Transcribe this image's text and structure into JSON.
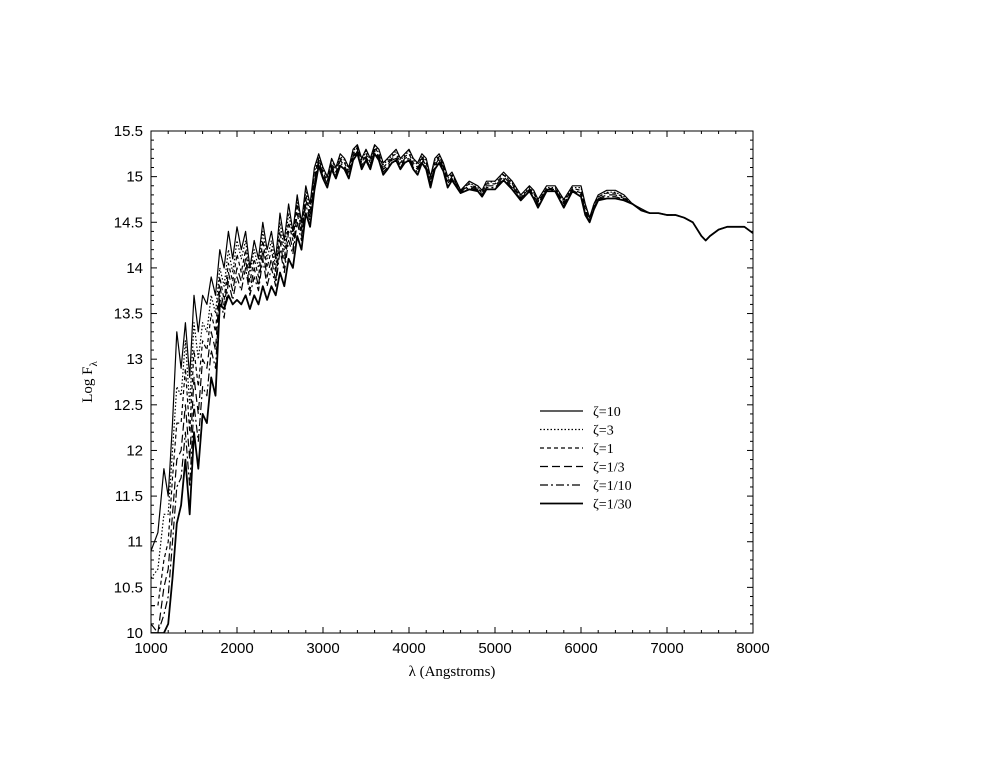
{
  "chart_data": {
    "type": "line",
    "title": "",
    "xlabel": "λ (Angstroms)",
    "ylabel_main": "Log F",
    "ylabel_sub": "λ",
    "xlim": [
      1000,
      8000
    ],
    "ylim": [
      10,
      15.5
    ],
    "xticks": [
      "1000",
      "2000",
      "3000",
      "4000",
      "5000",
      "6000",
      "7000",
      "8000"
    ],
    "yticks": [
      "10",
      "10.5",
      "11",
      "11.5",
      "12",
      "12.5",
      "13",
      "13.5",
      "14",
      "14.5",
      "15",
      "15.5"
    ],
    "grid": false,
    "legend_position": "center-right",
    "colors": {
      "line": "#000000",
      "frame": "#000000",
      "background": "#ffffff"
    },
    "x": [
      1000,
      1080,
      1150,
      1200,
      1250,
      1300,
      1350,
      1400,
      1450,
      1500,
      1550,
      1600,
      1650,
      1700,
      1750,
      1800,
      1850,
      1900,
      1950,
      2000,
      2050,
      2100,
      2150,
      2200,
      2250,
      2300,
      2350,
      2400,
      2450,
      2500,
      2550,
      2600,
      2650,
      2700,
      2750,
      2800,
      2850,
      2900,
      2950,
      3000,
      3050,
      3100,
      3150,
      3200,
      3250,
      3300,
      3350,
      3400,
      3450,
      3500,
      3550,
      3600,
      3650,
      3700,
      3750,
      3800,
      3850,
      3900,
      3950,
      4000,
      4050,
      4100,
      4150,
      4200,
      4250,
      4300,
      4350,
      4400,
      4450,
      4500,
      4600,
      4700,
      4800,
      4850,
      4900,
      5000,
      5100,
      5200,
      5300,
      5400,
      5450,
      5500,
      5600,
      5700,
      5800,
      5900,
      6000,
      6050,
      6100,
      6150,
      6200,
      6300,
      6400,
      6500,
      6600,
      6700,
      6800,
      6900,
      7000,
      7100,
      7200,
      7300,
      7400,
      7450,
      7500,
      7600,
      7700,
      7800,
      7900,
      8000
    ],
    "series": [
      {
        "name": "ζ=10",
        "dash": "solid",
        "values": [
          10.9,
          11.1,
          11.8,
          11.5,
          12.3,
          13.3,
          12.9,
          13.4,
          12.8,
          13.7,
          13.3,
          13.7,
          13.6,
          13.9,
          13.7,
          14.2,
          14.0,
          14.4,
          14.1,
          14.45,
          14.2,
          14.4,
          14.0,
          14.3,
          14.1,
          14.5,
          14.2,
          14.4,
          14.1,
          14.6,
          14.3,
          14.7,
          14.4,
          14.8,
          14.5,
          14.9,
          14.7,
          15.1,
          15.25,
          15.1,
          15.0,
          15.2,
          15.1,
          15.25,
          15.2,
          15.1,
          15.3,
          15.35,
          15.2,
          15.3,
          15.2,
          15.35,
          15.3,
          15.15,
          15.2,
          15.25,
          15.3,
          15.2,
          15.25,
          15.3,
          15.2,
          15.15,
          15.25,
          15.2,
          15.0,
          15.2,
          15.25,
          15.15,
          15.0,
          15.05,
          14.85,
          14.95,
          14.9,
          14.85,
          14.95,
          14.95,
          15.05,
          14.95,
          14.8,
          14.9,
          14.85,
          14.75,
          14.9,
          14.9,
          14.75,
          14.9,
          14.9,
          14.7,
          14.55,
          14.7,
          14.8,
          14.85,
          14.85,
          14.8,
          14.7,
          14.65,
          14.6,
          14.6,
          14.58,
          14.58,
          14.55,
          14.5,
          14.35,
          14.3,
          14.35,
          14.42,
          14.45,
          14.45,
          14.45,
          14.38
        ]
      },
      {
        "name": "ζ=3",
        "dash": "dotted",
        "values": [
          10.6,
          10.7,
          11.3,
          11.3,
          12.0,
          12.7,
          12.6,
          13.2,
          12.5,
          13.4,
          13.0,
          13.4,
          13.3,
          13.7,
          13.5,
          14.0,
          13.8,
          14.2,
          13.95,
          14.3,
          14.1,
          14.3,
          13.95,
          14.2,
          14.0,
          14.4,
          14.1,
          14.3,
          14.0,
          14.5,
          14.2,
          14.6,
          14.35,
          14.75,
          14.45,
          14.85,
          14.65,
          15.05,
          15.22,
          15.08,
          14.98,
          15.18,
          15.08,
          15.22,
          15.18,
          15.08,
          15.28,
          15.33,
          15.18,
          15.28,
          15.18,
          15.33,
          15.28,
          15.13,
          15.18,
          15.23,
          15.28,
          15.18,
          15.23,
          15.28,
          15.18,
          15.13,
          15.23,
          15.18,
          14.98,
          15.18,
          15.23,
          15.13,
          14.98,
          15.03,
          14.85,
          14.93,
          14.88,
          14.83,
          14.93,
          14.95,
          15.03,
          14.93,
          14.78,
          14.88,
          14.83,
          14.73,
          14.88,
          14.88,
          14.73,
          14.88,
          14.88,
          14.68,
          14.53,
          14.7,
          14.78,
          14.83,
          14.83,
          14.78,
          14.7,
          14.63,
          14.6,
          14.6,
          14.58,
          14.58,
          14.55,
          14.5,
          14.35,
          14.3,
          14.35,
          14.42,
          14.45,
          14.45,
          14.45,
          14.38
        ]
      },
      {
        "name": "ζ=1",
        "dash": "dashed-short",
        "values": [
          10.3,
          10.3,
          10.8,
          11.0,
          11.7,
          12.3,
          12.3,
          12.9,
          12.2,
          13.1,
          12.7,
          13.2,
          13.1,
          13.5,
          13.3,
          13.9,
          13.65,
          14.05,
          13.85,
          14.15,
          13.95,
          14.2,
          13.85,
          14.1,
          13.9,
          14.3,
          14.0,
          14.2,
          13.95,
          14.4,
          14.1,
          14.5,
          14.3,
          14.7,
          14.4,
          14.8,
          14.6,
          15.0,
          15.2,
          15.05,
          14.95,
          15.15,
          15.05,
          15.2,
          15.15,
          15.05,
          15.25,
          15.32,
          15.15,
          15.25,
          15.15,
          15.32,
          15.25,
          15.1,
          15.15,
          15.22,
          15.25,
          15.15,
          15.22,
          15.25,
          15.15,
          15.1,
          15.22,
          15.15,
          14.95,
          15.15,
          15.22,
          15.12,
          14.95,
          15.02,
          14.85,
          14.92,
          14.87,
          14.82,
          14.92,
          14.92,
          15.02,
          14.92,
          14.77,
          14.87,
          14.82,
          14.72,
          14.87,
          14.87,
          14.72,
          14.87,
          14.85,
          14.65,
          14.52,
          14.68,
          14.78,
          14.82,
          14.82,
          14.77,
          14.7,
          14.63,
          14.6,
          14.6,
          14.58,
          14.58,
          14.55,
          14.5,
          14.35,
          14.3,
          14.35,
          14.42,
          14.45,
          14.45,
          14.45,
          14.38
        ]
      },
      {
        "name": "ζ=1/3",
        "dash": "dashed-long",
        "values": [
          10.1,
          10.0,
          10.5,
          10.7,
          11.3,
          11.9,
          12.0,
          12.5,
          11.9,
          12.8,
          12.4,
          13.0,
          12.9,
          13.3,
          13.1,
          13.8,
          13.55,
          13.95,
          13.75,
          14.0,
          13.85,
          14.1,
          13.75,
          14.0,
          13.8,
          14.2,
          13.9,
          14.1,
          13.85,
          14.3,
          14.0,
          14.4,
          14.2,
          14.6,
          14.35,
          14.75,
          14.55,
          14.95,
          15.18,
          15.02,
          14.92,
          15.12,
          15.02,
          15.18,
          15.12,
          15.02,
          15.22,
          15.3,
          15.12,
          15.22,
          15.12,
          15.3,
          15.22,
          15.08,
          15.12,
          15.2,
          15.22,
          15.12,
          15.2,
          15.22,
          15.12,
          15.08,
          15.2,
          15.12,
          14.92,
          15.12,
          15.2,
          15.1,
          14.92,
          15.0,
          14.84,
          14.9,
          14.86,
          14.8,
          14.9,
          14.9,
          15.0,
          14.9,
          14.76,
          14.86,
          14.8,
          14.7,
          14.86,
          14.86,
          14.7,
          14.86,
          14.82,
          14.62,
          14.5,
          14.66,
          14.76,
          14.8,
          14.8,
          14.76,
          14.7,
          14.63,
          14.6,
          14.6,
          14.58,
          14.58,
          14.55,
          14.5,
          14.35,
          14.3,
          14.35,
          14.42,
          14.45,
          14.45,
          14.45,
          14.38
        ]
      },
      {
        "name": "ζ=1/10",
        "dash": "dash-dot",
        "values": [
          10.0,
          10.0,
          10.2,
          10.4,
          11.0,
          11.6,
          11.7,
          12.2,
          11.6,
          12.5,
          12.1,
          12.7,
          12.6,
          13.1,
          12.9,
          13.7,
          13.45,
          13.85,
          13.65,
          13.9,
          13.75,
          14.0,
          13.7,
          13.9,
          13.75,
          14.1,
          13.8,
          14.0,
          13.8,
          14.2,
          13.95,
          14.3,
          14.15,
          14.5,
          14.3,
          14.7,
          14.5,
          14.9,
          15.15,
          15.0,
          14.9,
          15.1,
          15.0,
          15.15,
          15.1,
          15.0,
          15.2,
          15.28,
          15.1,
          15.2,
          15.1,
          15.28,
          15.2,
          15.05,
          15.1,
          15.18,
          15.2,
          15.1,
          15.18,
          15.2,
          15.1,
          15.05,
          15.18,
          15.1,
          14.9,
          15.1,
          15.18,
          15.08,
          14.9,
          14.98,
          14.83,
          14.88,
          14.85,
          14.8,
          14.88,
          14.88,
          14.98,
          14.88,
          14.75,
          14.85,
          14.78,
          14.68,
          14.85,
          14.85,
          14.68,
          14.85,
          14.8,
          14.6,
          14.5,
          14.65,
          14.75,
          14.78,
          14.78,
          14.75,
          14.7,
          14.63,
          14.6,
          14.6,
          14.58,
          14.58,
          14.55,
          14.5,
          14.35,
          14.3,
          14.35,
          14.42,
          14.45,
          14.45,
          14.45,
          14.38
        ]
      },
      {
        "name": "ζ=1/30",
        "dash": "solid",
        "values": [
          10.0,
          10.0,
          10.0,
          10.1,
          10.6,
          11.2,
          11.4,
          11.9,
          11.3,
          12.2,
          11.8,
          12.4,
          12.3,
          12.8,
          12.6,
          13.6,
          13.55,
          13.7,
          13.6,
          13.65,
          13.6,
          13.7,
          13.55,
          13.7,
          13.6,
          13.8,
          13.65,
          13.8,
          13.7,
          13.95,
          13.8,
          14.1,
          14.0,
          14.35,
          14.2,
          14.6,
          14.45,
          14.85,
          15.12,
          14.98,
          14.88,
          15.08,
          14.98,
          15.12,
          15.08,
          14.98,
          15.18,
          15.25,
          15.08,
          15.18,
          15.08,
          15.25,
          15.18,
          15.02,
          15.08,
          15.15,
          15.18,
          15.08,
          15.15,
          15.18,
          15.08,
          15.02,
          15.15,
          15.08,
          14.88,
          15.08,
          15.15,
          15.06,
          14.88,
          14.96,
          14.82,
          14.86,
          14.84,
          14.78,
          14.86,
          14.86,
          14.96,
          14.86,
          14.74,
          14.84,
          14.76,
          14.66,
          14.84,
          14.84,
          14.66,
          14.84,
          14.78,
          14.58,
          14.5,
          14.64,
          14.74,
          14.76,
          14.76,
          14.74,
          14.7,
          14.63,
          14.6,
          14.6,
          14.58,
          14.58,
          14.55,
          14.5,
          14.35,
          14.3,
          14.35,
          14.42,
          14.45,
          14.45,
          14.45,
          14.38
        ]
      }
    ]
  }
}
